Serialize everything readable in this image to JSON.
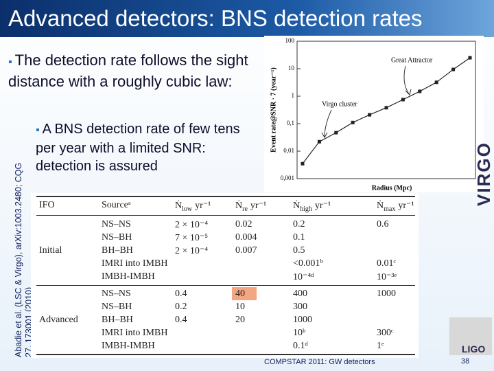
{
  "header": {
    "title": "Advanced detectors: BNS detection rates"
  },
  "bullets": [
    {
      "text": "The detection rate follows the sight distance with a roughly cubic law:"
    },
    {
      "text": "A BNS detection rate of few tens per year with a limited SNR: detection is assured"
    }
  ],
  "side_note": "Abadie et al. (LSC & Virgo), arXiv:1003.2480; CQG 27, 173001 (2010)",
  "chart_data": {
    "type": "line",
    "y_label": "Event rate@SNR · 7 (year⁻¹)",
    "x_label": "Radius (Mpc)",
    "categories": [
      null,
      null,
      null,
      null,
      null,
      null,
      null,
      null,
      null,
      null,
      null
    ],
    "values": [
      0.0035,
      0.022,
      0.047,
      0.11,
      0.21,
      0.38,
      0.75,
      1.5,
      3.2,
      9.4,
      25
    ],
    "color": "#222222",
    "log_y": true,
    "ylim": [
      0.001,
      100
    ],
    "yticks": [
      {
        "value": 0.001,
        "label": "0,001"
      },
      {
        "value": 0.01,
        "label": "0,01"
      },
      {
        "value": 0.1,
        "label": "0,1"
      },
      1,
      10,
      100
    ],
    "annotations": [
      "Great Attractor",
      "Virgo cluster"
    ]
  },
  "table": {
    "columns": [
      {
        "text": "IFO"
      },
      {
        "text": "Sourceᵃ"
      },
      {
        "sym": "Ṅ",
        "sub": "low",
        "unit": "yr⁻¹"
      },
      {
        "sym": "Ṅ",
        "sub": "re",
        "unit": "yr⁻¹"
      },
      {
        "sym": "Ṅ",
        "sub": "high",
        "unit": "yr⁻¹"
      },
      {
        "sym": "Ṅ",
        "sub": "max",
        "unit": "yr⁻¹"
      }
    ],
    "groups": [
      {
        "ifo": "Initial",
        "rows": [
          [
            "NS–NS",
            "2 × 10⁻⁴",
            "0.02",
            "0.2",
            "0.6"
          ],
          [
            "NS–BH",
            "7 × 10⁻⁵",
            "0.004",
            "0.1",
            null
          ],
          [
            "BH–BH",
            "2 × 10⁻⁴",
            "0.007",
            "0.5",
            null
          ],
          [
            "IMRI into IMBH",
            null,
            null,
            "<0.001ᵇ",
            "0.01ᶜ"
          ],
          [
            "IMBH-IMBH",
            null,
            null,
            "10⁻⁴ᵈ",
            "10⁻³ᵉ"
          ]
        ]
      },
      {
        "ifo": "Advanced",
        "rows": [
          [
            "NS–NS",
            "0.4",
            "40",
            "400",
            "1000"
          ],
          [
            "NS–BH",
            "0.2",
            "10",
            "300",
            null
          ],
          [
            "BH–BH",
            "0.4",
            "20",
            "1000",
            null
          ],
          [
            "IMRI into IMBH",
            null,
            null,
            "10ᵇ",
            "300ᶜ"
          ],
          [
            "IMBH-IMBH",
            null,
            null,
            "0.1ᵈ",
            "1ᵉ"
          ]
        ]
      }
    ]
  },
  "footer": {
    "text": "COMPSTAR 2011: GW detectors",
    "page": "38"
  },
  "logos": [
    "VIRGO",
    "LIGO"
  ]
}
